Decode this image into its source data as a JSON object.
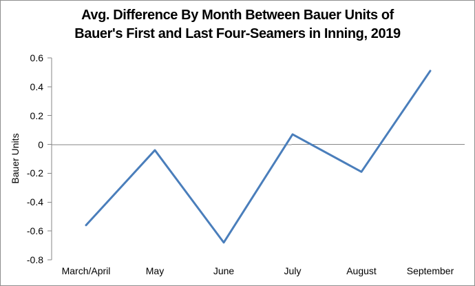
{
  "chart_data": {
    "type": "line",
    "title_lines": [
      "Avg. Difference By Month Between Bauer Units of",
      "Bauer's First and Last Four-Seamers in Inning, 2019"
    ],
    "title": "Avg. Difference By Month Between Bauer Units of Bauer's First and Last Four-Seamers in Inning, 2019",
    "xlabel": "",
    "ylabel": "Bauer Units",
    "categories": [
      "March/April",
      "May",
      "June",
      "July",
      "August",
      "September"
    ],
    "values": [
      -0.56,
      -0.04,
      -0.68,
      0.07,
      -0.19,
      0.51
    ],
    "yticks": [
      "0.6",
      "0.4",
      "0.2",
      "0",
      "-0.2",
      "-0.4",
      "-0.6",
      "-0.8"
    ],
    "ylim": [
      -0.8,
      0.6
    ],
    "grid": "zero-line-only",
    "legend": "none",
    "line_color": "#4A7EBB",
    "axis_color": "#868686",
    "zero_line_color": "#868686",
    "text_color": "#000000",
    "background_color": "#ffffff"
  }
}
